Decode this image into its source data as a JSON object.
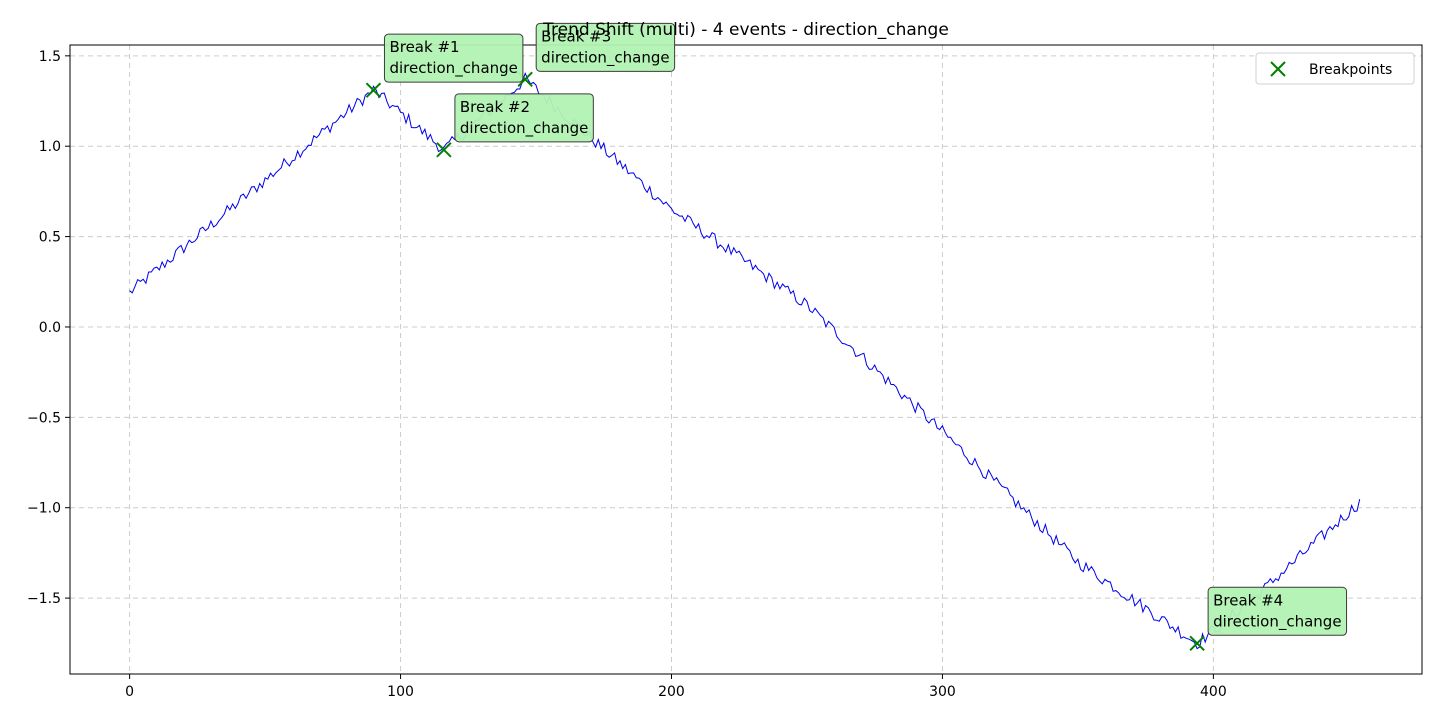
{
  "chart_data": {
    "type": "line",
    "title": "Trend Shift (multi) - 4 events - direction_change",
    "xlabel": "",
    "ylabel": "",
    "xlim": [
      -22,
      477
    ],
    "ylim": [
      -1.92,
      1.56
    ],
    "x_ticks": [
      0,
      100,
      200,
      300,
      400
    ],
    "y_ticks": [
      -1.5,
      -1.0,
      -0.5,
      0.0,
      0.5,
      1.0,
      1.5
    ],
    "x_tick_labels": [
      "0",
      "100",
      "200",
      "300",
      "400"
    ],
    "y_tick_labels": [
      "−1.5",
      "−1.0",
      "−0.5",
      "0.0",
      "0.5",
      "1.0",
      "1.5"
    ],
    "grid": true,
    "legend": {
      "position": "top-right",
      "entries": [
        "Breakpoints"
      ]
    },
    "series": [
      {
        "kind": "line",
        "color": "#0000ee",
        "anchors": [
          [
            0,
            0.19
          ],
          [
            90,
            1.31
          ],
          [
            116,
            0.98
          ],
          [
            135,
            1.22
          ],
          [
            146,
            1.37
          ],
          [
            170,
            1.05
          ],
          [
            200,
            0.65
          ],
          [
            250,
            0.12
          ],
          [
            300,
            -0.58
          ],
          [
            350,
            -1.3
          ],
          [
            394,
            -1.75
          ],
          [
            415,
            -1.5
          ],
          [
            454,
            -0.97
          ]
        ],
        "noise": 0.035
      }
    ],
    "breakpoints": [
      {
        "label": "Break #1\ndirection_change",
        "x": 90,
        "y": 1.31
      },
      {
        "label": "Break #2\ndirection_change",
        "x": 116,
        "y": 0.98
      },
      {
        "label": "Break #3\ndirection_change",
        "x": 146,
        "y": 1.37
      },
      {
        "label": "Break #4\ndirection_change",
        "x": 394,
        "y": -1.75
      }
    ],
    "marker_color": "#008000",
    "annotation_fill": "#b2f2b2"
  }
}
